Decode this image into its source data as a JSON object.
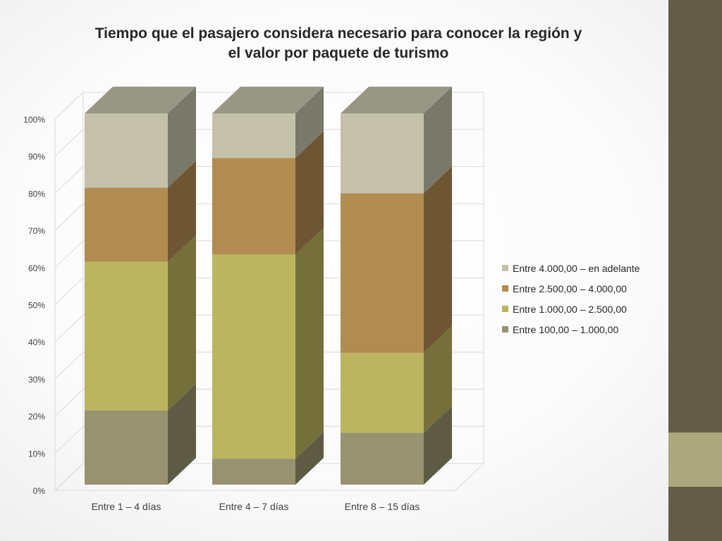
{
  "colors": {
    "sidebar": "#655c47",
    "sidebar_accent": "#aaa87c"
  },
  "chart_data": {
    "type": "bar",
    "stacked": true,
    "three_d": true,
    "title_lines": [
      "Tiempo que el pasajero considera necesario para conocer la región y",
      "el valor por paquete de turismo"
    ],
    "categories": [
      "Entre 1 – 4 días",
      "Entre 4 – 7 días",
      "Entre 8 – 15 días"
    ],
    "y_ticks": [
      "0%",
      "10%",
      "20%",
      "30%",
      "40%",
      "50%",
      "60%",
      "70%",
      "80%",
      "90%",
      "100%"
    ],
    "ylim": [
      0,
      100
    ],
    "grid": true,
    "legend_position": "right",
    "series": [
      {
        "name": "Entre 100,00 – 1.000,00",
        "color": "#97926f",
        "values": [
          20,
          7,
          14
        ]
      },
      {
        "name": "Entre 1.000,00 – 2.500,00",
        "color": "#bcb55f",
        "values": [
          40,
          55,
          21.5
        ]
      },
      {
        "name": "Entre 2.500,00 – 4.000,00",
        "color": "#b28b51",
        "values": [
          20,
          26,
          43
        ]
      },
      {
        "name": "Entre 4.000,00 – en adelante",
        "color": "#c3c1aa",
        "values": [
          20,
          12,
          21.5
        ]
      }
    ]
  }
}
